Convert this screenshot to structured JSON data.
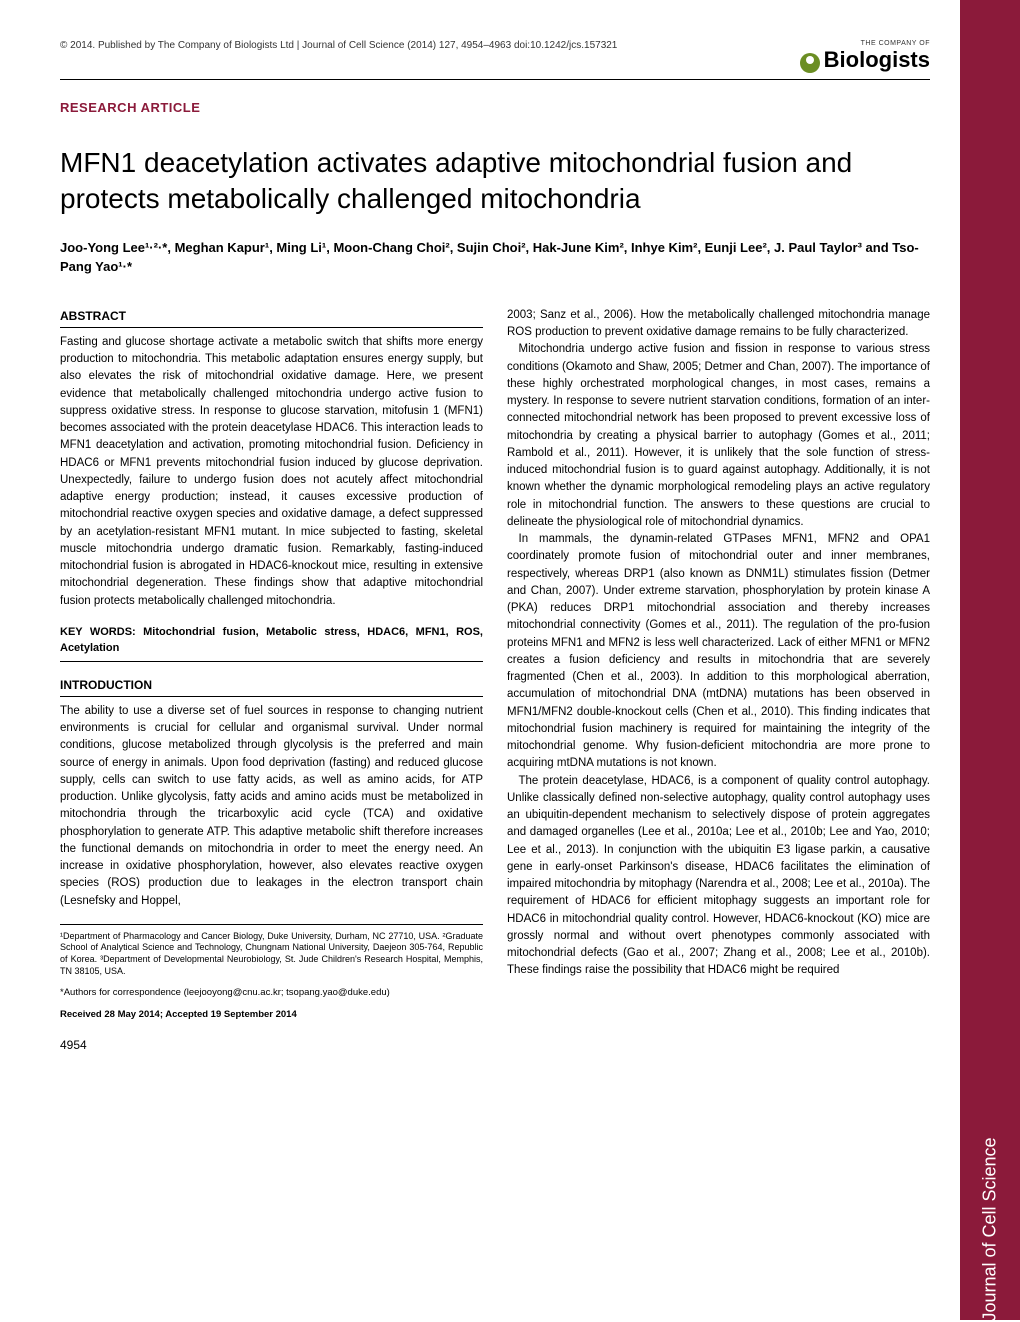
{
  "header": {
    "citation": "© 2014. Published by The Company of Biologists Ltd | Journal of Cell Science (2014) 127, 4954–4963 doi:10.1242/jcs.157321",
    "logo_company": "THE COMPANY OF",
    "logo_name": "Biologists"
  },
  "article_type": "RESEARCH ARTICLE",
  "title": "MFN1 deacetylation activates adaptive mitochondrial fusion and protects metabolically challenged mitochondria",
  "authors": "Joo-Yong Lee¹·²·*, Meghan Kapur¹, Ming Li¹, Moon-Chang Choi², Sujin Choi², Hak-June Kim², Inhye Kim², Eunji Lee², J. Paul Taylor³ and Tso-Pang Yao¹·*",
  "abstract": {
    "heading": "ABSTRACT",
    "text": "Fasting and glucose shortage activate a metabolic switch that shifts more energy production to mitochondria. This metabolic adaptation ensures energy supply, but also elevates the risk of mitochondrial oxidative damage. Here, we present evidence that metabolically challenged mitochondria undergo active fusion to suppress oxidative stress. In response to glucose starvation, mitofusin 1 (MFN1) becomes associated with the protein deacetylase HDAC6. This interaction leads to MFN1 deacetylation and activation, promoting mitochondrial fusion. Deficiency in HDAC6 or MFN1 prevents mitochondrial fusion induced by glucose deprivation. Unexpectedly, failure to undergo fusion does not acutely affect mitochondrial adaptive energy production; instead, it causes excessive production of mitochondrial reactive oxygen species and oxidative damage, a defect suppressed by an acetylation-resistant MFN1 mutant. In mice subjected to fasting, skeletal muscle mitochondria undergo dramatic fusion. Remarkably, fasting-induced mitochondrial fusion is abrogated in HDAC6-knockout mice, resulting in extensive mitochondrial degeneration. These findings show that adaptive mitochondrial fusion protects metabolically challenged mitochondria."
  },
  "keywords": "KEY WORDS: Mitochondrial fusion, Metabolic stress, HDAC6, MFN1, ROS, Acetylation",
  "introduction": {
    "heading": "INTRODUCTION",
    "p1": "The ability to use a diverse set of fuel sources in response to changing nutrient environments is crucial for cellular and organismal survival. Under normal conditions, glucose metabolized through glycolysis is the preferred and main source of energy in animals. Upon food deprivation (fasting) and reduced glucose supply, cells can switch to use fatty acids, as well as amino acids, for ATP production. Unlike glycolysis, fatty acids and amino acids must be metabolized in mitochondria through the tricarboxylic acid cycle (TCA) and oxidative phosphorylation to generate ATP. This adaptive metabolic shift therefore increases the functional demands on mitochondria in order to meet the energy need. An increase in oxidative phosphorylation, however, also elevates reactive oxygen species (ROS) production due to leakages in the electron transport chain (Lesnefsky and Hoppel,"
  },
  "col2": {
    "p1": "2003; Sanz et al., 2006). How the metabolically challenged mitochondria manage ROS production to prevent oxidative damage remains to be fully characterized.",
    "p2": "Mitochondria undergo active fusion and fission in response to various stress conditions (Okamoto and Shaw, 2005; Detmer and Chan, 2007). The importance of these highly orchestrated morphological changes, in most cases, remains a mystery. In response to severe nutrient starvation conditions, formation of an inter-connected mitochondrial network has been proposed to prevent excessive loss of mitochondria by creating a physical barrier to autophagy (Gomes et al., 2011; Rambold et al., 2011). However, it is unlikely that the sole function of stress-induced mitochondrial fusion is to guard against autophagy. Additionally, it is not known whether the dynamic morphological remodeling plays an active regulatory role in mitochondrial function. The answers to these questions are crucial to delineate the physiological role of mitochondrial dynamics.",
    "p3": "In mammals, the dynamin-related GTPases MFN1, MFN2 and OPA1 coordinately promote fusion of mitochondrial outer and inner membranes, respectively, whereas DRP1 (also known as DNM1L) stimulates fission (Detmer and Chan, 2007). Under extreme starvation, phosphorylation by protein kinase A (PKA) reduces DRP1 mitochondrial association and thereby increases mitochondrial connectivity (Gomes et al., 2011). The regulation of the pro-fusion proteins MFN1 and MFN2 is less well characterized. Lack of either MFN1 or MFN2 creates a fusion deficiency and results in mitochondria that are severely fragmented (Chen et al., 2003). In addition to this morphological aberration, accumulation of mitochondrial DNA (mtDNA) mutations has been observed in MFN1/MFN2 double-knockout cells (Chen et al., 2010). This finding indicates that mitochondrial fusion machinery is required for maintaining the integrity of the mitochondrial genome. Why fusion-deficient mitochondria are more prone to acquiring mtDNA mutations is not known.",
    "p4": "The protein deacetylase, HDAC6, is a component of quality control autophagy. Unlike classically defined non-selective autophagy, quality control autophagy uses an ubiquitin-dependent mechanism to selectively dispose of protein aggregates and damaged organelles (Lee et al., 2010a; Lee et al., 2010b; Lee and Yao, 2010; Lee et al., 2013). In conjunction with the ubiquitin E3 ligase parkin, a causative gene in early-onset Parkinson's disease, HDAC6 facilitates the elimination of impaired mitochondria by mitophagy (Narendra et al., 2008; Lee et al., 2010a). The requirement of HDAC6 for efficient mitophagy suggests an important role for HDAC6 in mitochondrial quality control. However, HDAC6-knockout (KO) mice are grossly normal and without overt phenotypes commonly associated with mitochondrial defects (Gao et al., 2007; Zhang et al., 2008; Lee et al., 2010b). These findings raise the possibility that HDAC6 might be required"
  },
  "affiliations": "¹Department of Pharmacology and Cancer Biology, Duke University, Durham, NC 27710, USA. ²Graduate School of Analytical Science and Technology, Chungnam National University, Daejeon 305-764, Republic of Korea. ³Department of Developmental Neurobiology, St. Jude Children's Research Hospital, Memphis, TN 38105, USA.",
  "correspondence": "*Authors for correspondence (leejooyong@cnu.ac.kr; tsopang.yao@duke.edu)",
  "received": "Received 28 May 2014; Accepted 19 September 2014",
  "pagenum": "4954",
  "sidebar_text": "Journal of Cell Science",
  "colors": {
    "accent": "#8b1a3a",
    "logo_green": "#6b8e23",
    "text": "#000000",
    "background": "#ffffff"
  }
}
